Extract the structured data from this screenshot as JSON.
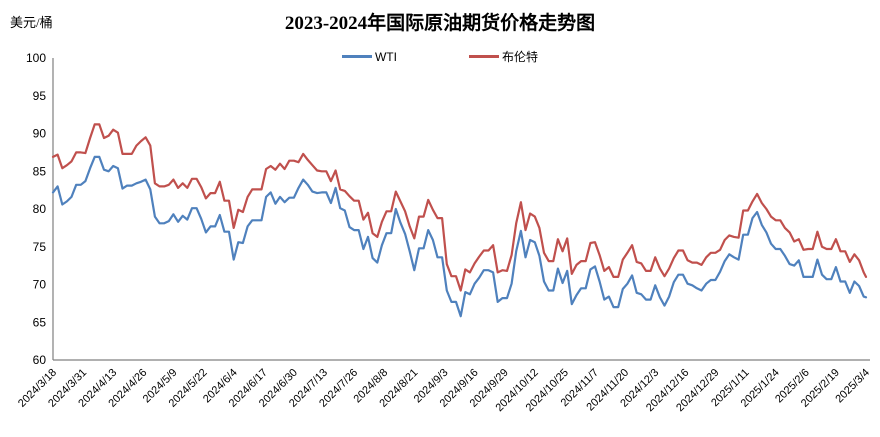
{
  "header": {
    "title": "2023-2024年国际原油期货价格走势图",
    "unit_label": "美元/桶"
  },
  "legend": {
    "items": [
      {
        "label": "WTI",
        "color": "#4F81BD"
      },
      {
        "label": "布伦特",
        "color": "#C0504D"
      }
    ]
  },
  "chart_data": {
    "type": "line",
    "title": "2023-2024年国际原油期货价格走势图",
    "ylabel": "美元/桶",
    "xlabel": "",
    "ylim": [
      60,
      100
    ],
    "ytick_step": 5,
    "grid": false,
    "legend_position": "top-center",
    "axis_color": "#808080",
    "x_tick_labels": [
      "2024/3/18",
      "2024/3/31",
      "2024/4/13",
      "2024/4/26",
      "2024/5/9",
      "2024/5/22",
      "2024/6/4",
      "2024/6/17",
      "2024/6/30",
      "2024/7/13",
      "2024/7/26",
      "2024/8/8",
      "2024/8/21",
      "2024/9/3",
      "2024/9/16",
      "2024/9/29",
      "2024/10/12",
      "2024/10/25",
      "2024/11/7",
      "2024/11/20",
      "2024/12/3",
      "2024/12/16",
      "2024/12/29",
      "2025/1/11",
      "2025/1/24",
      "2025/2/6",
      "2025/2/19",
      "2025/3/4"
    ],
    "label_interval_days": 13,
    "total_days": 351,
    "sample_step_days": 2,
    "series": [
      {
        "name": "WTI",
        "color": "#4F81BD",
        "values": [
          82.2,
          83.0,
          80.6,
          81.0,
          81.6,
          83.2,
          83.2,
          83.7,
          85.4,
          86.9,
          86.9,
          85.2,
          85.0,
          85.7,
          85.4,
          82.7,
          83.1,
          83.1,
          83.4,
          83.6,
          83.9,
          82.6,
          79.0,
          78.1,
          78.1,
          78.4,
          79.3,
          78.3,
          79.1,
          78.6,
          80.1,
          80.1,
          78.7,
          76.9,
          77.7,
          77.7,
          79.2,
          77.0,
          77.0,
          73.3,
          75.6,
          75.5,
          77.7,
          78.5,
          78.5,
          78.5,
          81.6,
          82.2,
          80.7,
          81.6,
          80.9,
          81.5,
          81.5,
          82.8,
          83.9,
          83.2,
          82.3,
          82.1,
          82.2,
          82.2,
          80.8,
          82.8,
          80.1,
          79.8,
          77.6,
          77.2,
          77.2,
          74.7,
          76.3,
          73.5,
          72.9,
          75.2,
          76.8,
          76.8,
          80.0,
          78.2,
          76.7,
          74.4,
          71.9,
          74.8,
          74.8,
          77.2,
          75.9,
          73.6,
          73.6,
          69.2,
          67.7,
          67.7,
          65.8,
          69.0,
          68.7,
          70.1,
          70.9,
          71.9,
          71.9,
          71.6,
          67.7,
          68.2,
          68.2,
          70.1,
          74.4,
          77.1,
          73.6,
          75.9,
          75.6,
          73.8,
          70.4,
          69.2,
          69.2,
          72.1,
          70.2,
          71.8,
          67.4,
          68.6,
          69.5,
          69.5,
          72.0,
          72.4,
          70.4,
          68.0,
          68.4,
          67.0,
          67.0,
          69.4,
          70.1,
          71.2,
          68.9,
          68.7,
          68.0,
          68.0,
          69.9,
          68.3,
          67.2,
          68.4,
          70.3,
          71.3,
          71.3,
          70.1,
          69.9,
          69.5,
          69.2,
          70.1,
          70.6,
          70.6,
          71.7,
          73.1,
          74.0,
          73.6,
          73.3,
          76.6,
          76.6,
          78.8,
          79.6,
          77.9,
          76.9,
          75.4,
          74.7,
          74.7,
          73.8,
          72.7,
          72.5,
          73.2,
          71.0,
          71.0,
          71.0,
          73.3,
          71.3,
          70.7,
          70.7,
          72.3,
          70.4,
          70.4,
          68.9,
          70.4,
          69.8,
          68.4,
          68.3
        ]
      },
      {
        "name": "布伦特",
        "color": "#C0504D",
        "values": [
          86.9,
          87.2,
          85.4,
          85.8,
          86.3,
          87.5,
          87.5,
          87.4,
          89.4,
          91.2,
          91.2,
          89.4,
          89.7,
          90.5,
          90.1,
          87.3,
          87.3,
          87.3,
          88.4,
          89.0,
          89.5,
          88.4,
          83.4,
          83.0,
          83.0,
          83.2,
          83.9,
          82.8,
          83.4,
          82.8,
          84.0,
          84.0,
          82.9,
          81.4,
          82.1,
          82.1,
          83.6,
          81.1,
          81.1,
          77.5,
          79.9,
          79.6,
          81.6,
          82.6,
          82.6,
          82.6,
          85.3,
          85.7,
          85.2,
          86.0,
          85.3,
          86.4,
          86.4,
          86.2,
          87.3,
          86.5,
          85.8,
          85.1,
          85.0,
          85.0,
          83.7,
          85.1,
          82.6,
          82.4,
          81.7,
          81.1,
          81.1,
          78.6,
          79.5,
          76.8,
          76.3,
          78.3,
          79.7,
          79.7,
          82.3,
          81.0,
          79.7,
          77.7,
          76.1,
          79.0,
          79.0,
          81.2,
          79.9,
          78.8,
          78.8,
          72.7,
          71.1,
          71.1,
          69.2,
          72.0,
          71.6,
          72.8,
          73.7,
          74.5,
          74.5,
          75.2,
          71.6,
          71.9,
          71.8,
          73.9,
          78.1,
          80.9,
          77.2,
          79.4,
          79.0,
          77.5,
          74.2,
          73.1,
          73.1,
          76.0,
          74.4,
          76.1,
          71.4,
          72.6,
          73.1,
          73.1,
          75.5,
          75.6,
          73.9,
          71.8,
          72.3,
          71.0,
          71.0,
          73.3,
          74.2,
          75.2,
          73.0,
          72.8,
          71.8,
          71.8,
          73.6,
          72.1,
          71.1,
          72.1,
          73.5,
          74.5,
          74.5,
          73.2,
          72.9,
          72.9,
          72.6,
          73.6,
          74.2,
          74.2,
          74.6,
          75.9,
          76.5,
          76.3,
          76.2,
          79.8,
          79.8,
          81.0,
          82.0,
          80.8,
          80.0,
          79.0,
          78.5,
          78.5,
          77.5,
          76.9,
          75.7,
          76.0,
          74.6,
          74.7,
          74.7,
          77.0,
          75.0,
          74.7,
          74.7,
          76.0,
          74.4,
          74.4,
          73.0,
          74.0,
          73.2,
          71.6,
          71.0
        ]
      }
    ]
  }
}
